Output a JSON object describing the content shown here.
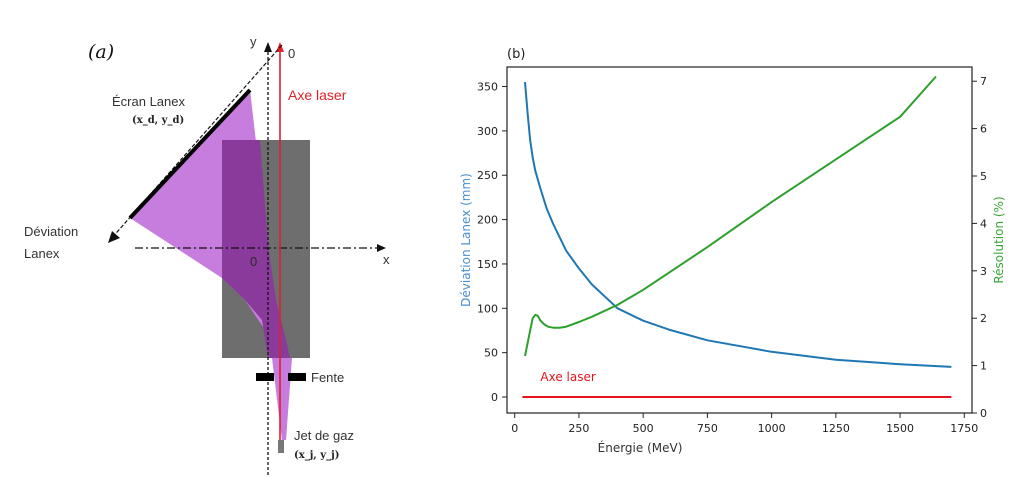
{
  "diagram": {
    "panel_label": "(a)",
    "screen_label": "Écran Lanex",
    "screen_coords": "(x_d, y_d)",
    "deviation_label_line1": "Déviation",
    "deviation_label_line2": "Lanex",
    "laser_label": "Axe laser",
    "slit_label": "Fente",
    "gas_jet_label": "Jet de gaz",
    "gas_jet_coords": "(x_j, y_j)",
    "x_axis_label": "x",
    "y_axis_label": "y",
    "origin_label": "0",
    "top_origin_label": "0",
    "colors": {
      "beam": "#c77ddd",
      "magnet": "#6e6e6e",
      "overlap": "#8a3a9a",
      "laser": "#e0202a"
    }
  },
  "chart_data": {
    "type": "line",
    "panel_label": "(b)",
    "title": "",
    "xlabel": "Énergie (MeV)",
    "ylabel": "Déviation Lanex (mm)",
    "ylabel_right": "Résolution (%)",
    "xlim": [
      -30,
      1780
    ],
    "ylim": [
      -18,
      372
    ],
    "ylim_right": [
      0,
      7.3
    ],
    "xticks": [
      0,
      250,
      500,
      750,
      1000,
      1250,
      1500,
      1750
    ],
    "yticks": [
      0,
      50,
      100,
      150,
      200,
      250,
      300,
      350
    ],
    "yticks_right": [
      0,
      1,
      2,
      3,
      4,
      5,
      6,
      7
    ],
    "grid": false,
    "series": [
      {
        "name": "Déviation Lanex",
        "axis": "left",
        "color": "#1f77b4",
        "x": [
          40,
          50,
          60,
          70,
          80,
          100,
          125,
          150,
          200,
          250,
          300,
          400,
          500,
          600,
          750,
          1000,
          1250,
          1500,
          1700
        ],
        "y": [
          355,
          320,
          290,
          270,
          255,
          235,
          212,
          195,
          165,
          145,
          127,
          100,
          86,
          76,
          64,
          51,
          42,
          37,
          34
        ]
      },
      {
        "name": "Résolution",
        "axis": "right",
        "color": "#2ca02c",
        "x": [
          40,
          55,
          70,
          80,
          90,
          100,
          115,
          130,
          150,
          175,
          200,
          250,
          300,
          400,
          500,
          750,
          1000,
          1250,
          1500,
          1640
        ],
        "y": [
          1.2,
          1.6,
          2.0,
          2.07,
          2.05,
          1.95,
          1.87,
          1.82,
          1.8,
          1.8,
          1.82,
          1.92,
          2.03,
          2.28,
          2.6,
          3.5,
          4.45,
          5.35,
          6.25,
          7.1
        ]
      },
      {
        "name": "Axe laser",
        "axis": "left",
        "color": "#e8141c",
        "x": [
          30,
          1700
        ],
        "y": [
          0,
          0
        ]
      }
    ],
    "annotations": [
      {
        "text": "Axe laser",
        "x": 100,
        "y": 18,
        "color": "#e8141c"
      }
    ]
  }
}
